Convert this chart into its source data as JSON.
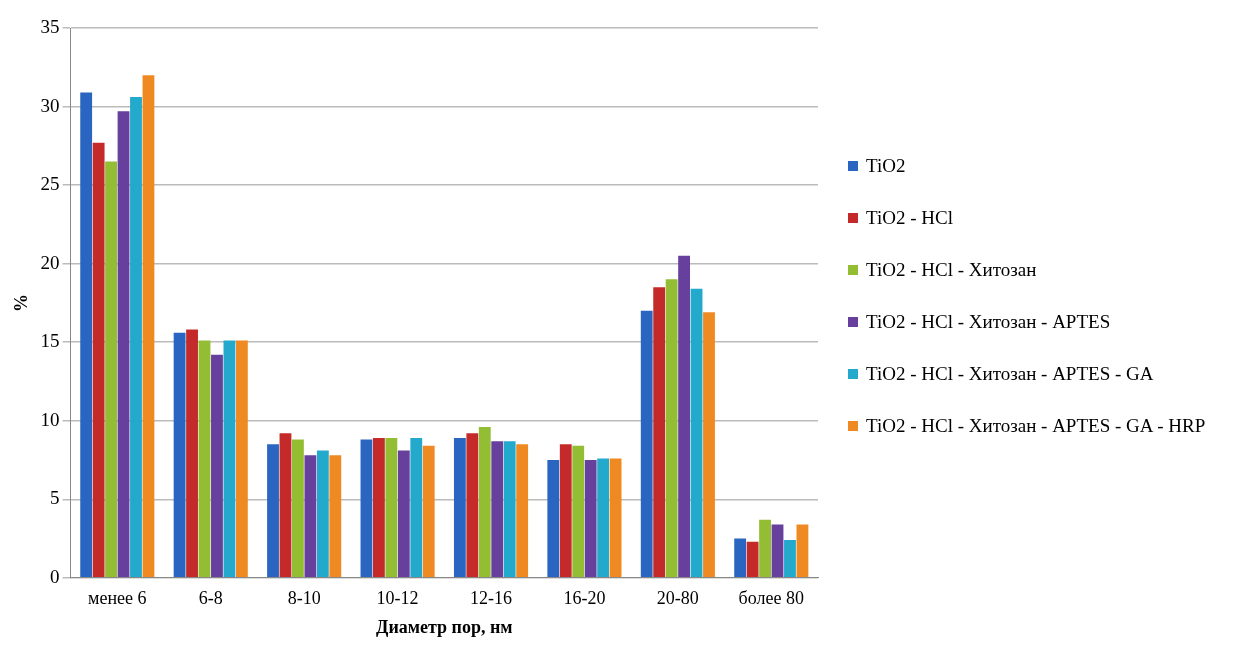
{
  "chart_data": {
    "type": "bar",
    "xlabel": "Диаметр пор, нм",
    "ylabel": "%",
    "categories": [
      "менее 6",
      "6-8",
      "8-10",
      "10-12",
      "12-16",
      "16-20",
      "20-80",
      "более 80"
    ],
    "series": [
      {
        "name": "TiO2",
        "color": "#2a65c1",
        "values": [
          30.9,
          15.6,
          8.5,
          8.8,
          8.9,
          7.5,
          17.0,
          2.5
        ]
      },
      {
        "name": "TiO2 - HCl",
        "color": "#c42a2a",
        "values": [
          27.7,
          15.8,
          9.2,
          8.9,
          9.2,
          8.5,
          18.5,
          2.3
        ]
      },
      {
        "name": "TiO2 - HCl - Хитозан",
        "color": "#93bd32",
        "values": [
          26.5,
          15.1,
          8.8,
          8.9,
          9.6,
          8.4,
          19.0,
          3.7
        ]
      },
      {
        "name": "TiO2 - HCl - Хитозан - APTES",
        "color": "#673f9c",
        "values": [
          29.7,
          14.2,
          7.8,
          8.1,
          8.7,
          7.5,
          20.5,
          3.4
        ]
      },
      {
        "name": "TiO2 - HCl - Хитозан - APTES - GA",
        "color": "#22a9cc",
        "values": [
          30.6,
          15.1,
          8.1,
          8.9,
          8.7,
          7.6,
          18.4,
          2.4
        ]
      },
      {
        "name": "TiO2 - HCl - Хитозан - APTES - GA  - HRP",
        "color": "#ef8a22",
        "values": [
          32.0,
          15.1,
          7.8,
          8.4,
          8.5,
          7.6,
          16.9,
          3.4
        ]
      }
    ],
    "ylim": [
      0,
      35
    ],
    "yticks": [
      0,
      5,
      10,
      15,
      20,
      25,
      30,
      35
    ],
    "grid": "y",
    "legend": "right"
  }
}
